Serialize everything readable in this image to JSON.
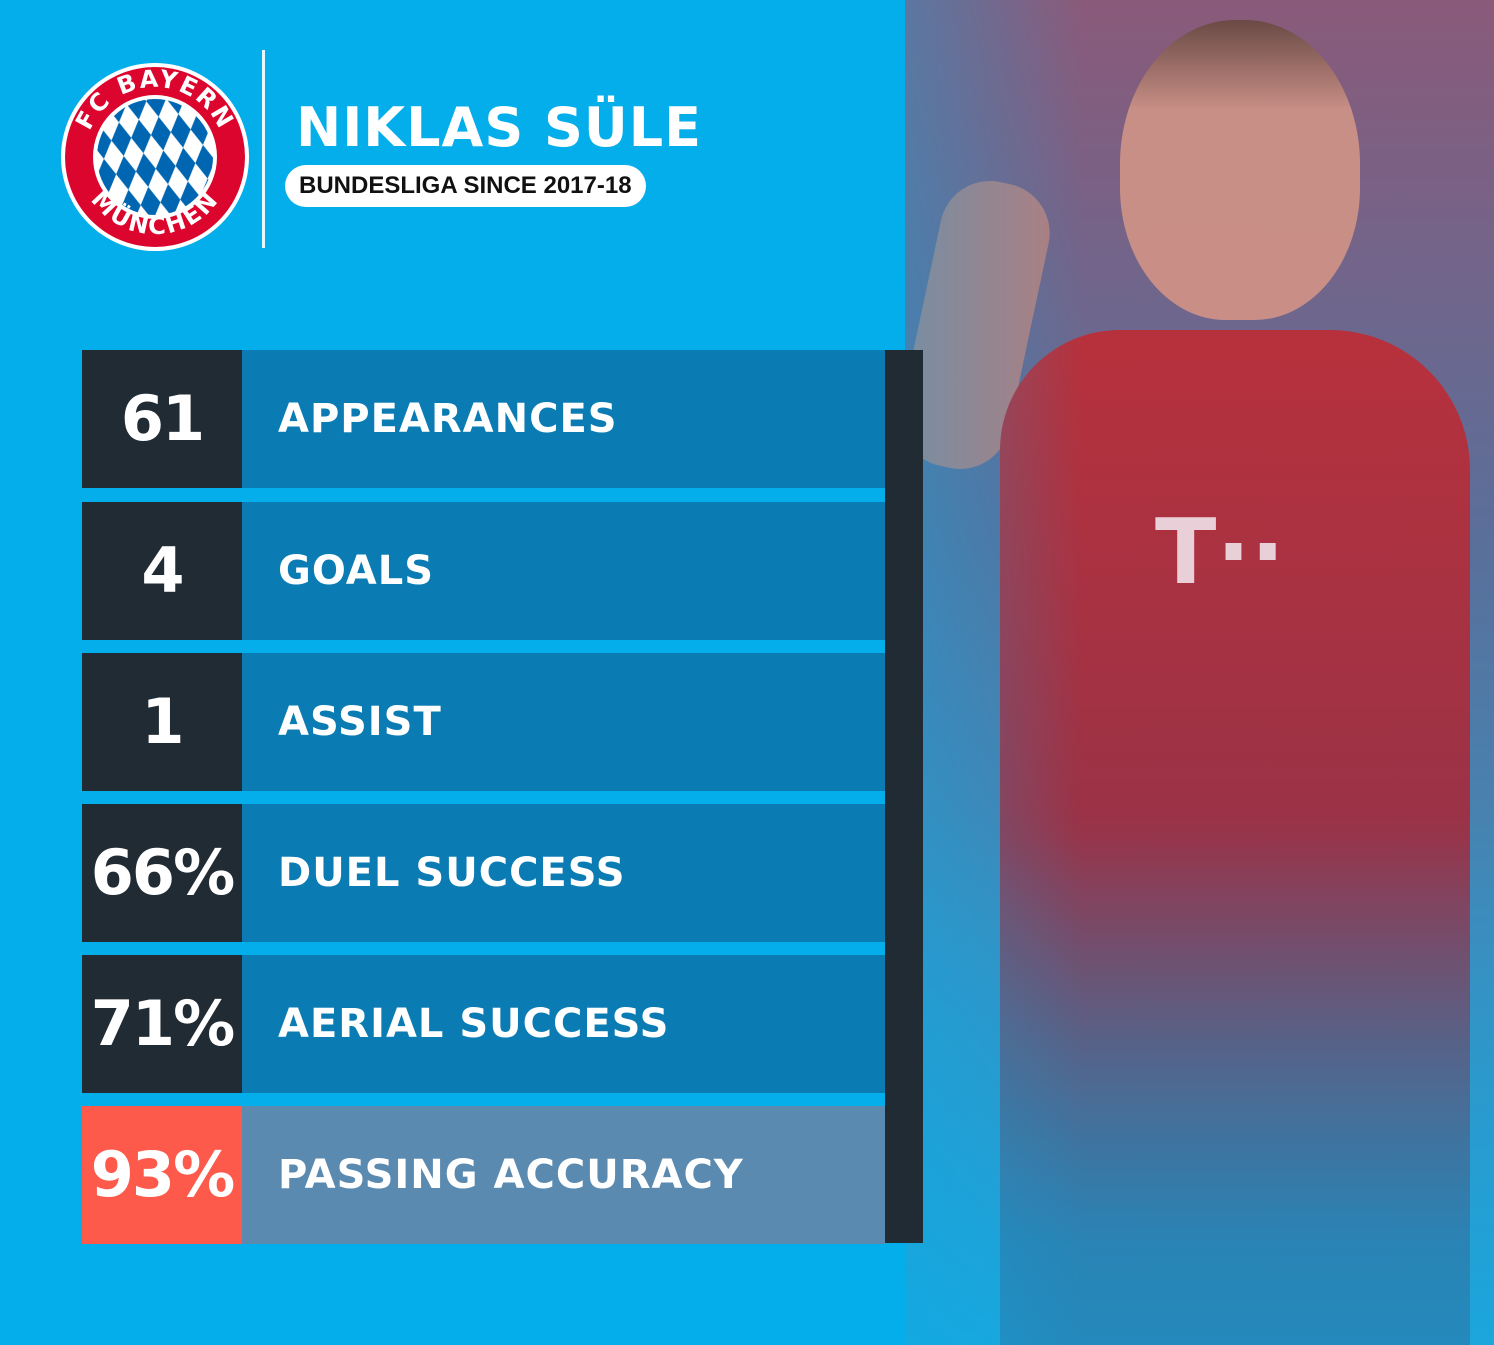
{
  "header": {
    "club_logo_text": [
      "FC BAYERN",
      "MÜNCHEN"
    ],
    "player_name": "NIKLAS SÜLE",
    "subtitle": "BUNDESLIGA SINCE 2017-18"
  },
  "stats": [
    {
      "value": "61",
      "label": "APPEARANCES",
      "highlight": false
    },
    {
      "value": "4",
      "label": "GOALS",
      "highlight": false
    },
    {
      "value": "1",
      "label": "ASSIST",
      "highlight": false
    },
    {
      "value": "66%",
      "label": "DUEL SUCCESS",
      "highlight": false
    },
    {
      "value": "71%",
      "label": "AERIAL SUCCESS",
      "highlight": false
    },
    {
      "value": "93%",
      "label": "PASSING ACCURACY",
      "highlight": true
    }
  ],
  "colors": {
    "background": "#04aeea",
    "number_box": "#212b33",
    "label_box": "#0b7cb3",
    "highlight_number": "#fe5a4b",
    "highlight_label": "#5b8ab0",
    "club_red": "#dc052d",
    "club_blue": "#0066b2"
  }
}
